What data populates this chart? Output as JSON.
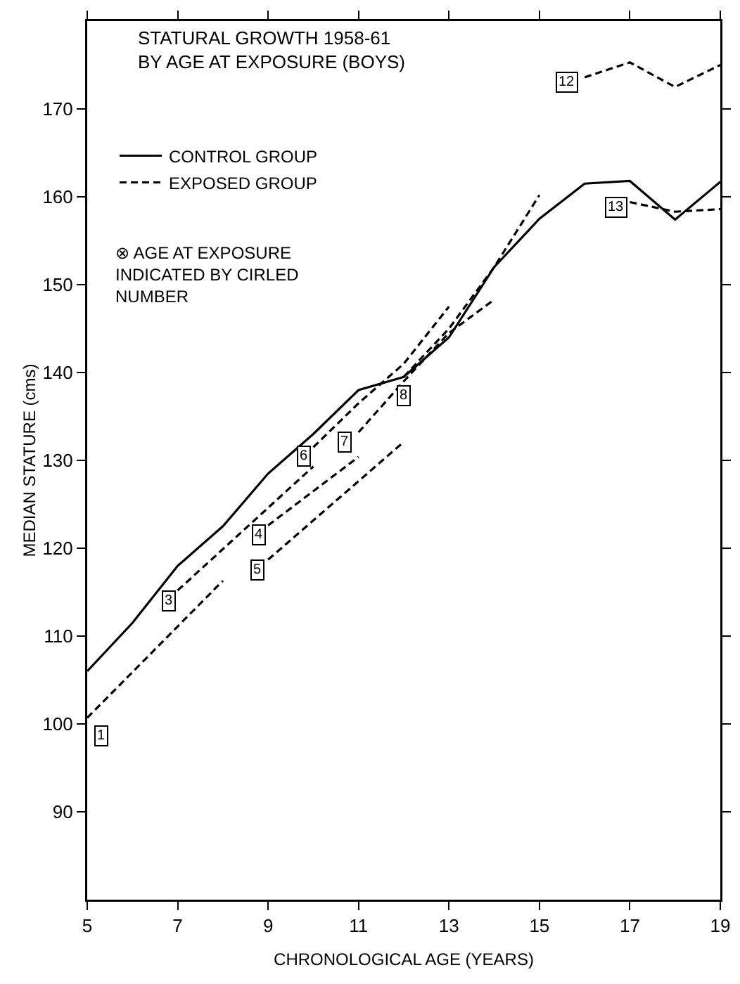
{
  "chart_data": {
    "type": "line",
    "title": "STATURAL GROWTH 1958-61\nBY AGE AT EXPOSURE (BOYS)",
    "xlabel": "CHRONOLOGICAL AGE (YEARS)",
    "ylabel": "MEDIAN STATURE (cms)",
    "xlim": [
      5,
      19
    ],
    "xticks": [
      5,
      7,
      9,
      11,
      13,
      15,
      17,
      19
    ],
    "ylim": [
      80,
      180
    ],
    "yticks": [
      90,
      100,
      110,
      120,
      130,
      140,
      150,
      160,
      170
    ],
    "grid": false,
    "legend": "top left",
    "marker": "none",
    "series": [
      {
        "name": "CONTROL GROUP",
        "color": "#000000",
        "line_style": "solid",
        "x": [
          5,
          6,
          7,
          8,
          9,
          10,
          11,
          12,
          13,
          14,
          15,
          16,
          17,
          18,
          19
        ],
        "values": [
          106,
          111.5,
          118,
          122.5,
          128.5,
          133,
          138,
          139.5,
          144,
          152,
          157.5,
          161.5,
          161.8,
          157.4,
          161.7
        ]
      },
      {
        "name": "EXPOSED GROUP",
        "color": "#000000",
        "line_style": "dashed",
        "x": [
          5,
          8
        ],
        "values": [
          100.7,
          116.3
        ]
      },
      {
        "color": "#000000",
        "line_style": "dashed",
        "x": [
          7,
          10
        ],
        "values": [
          115.2,
          129.3
        ]
      },
      {
        "color": "#000000",
        "line_style": "dashed",
        "x": [
          9,
          11
        ],
        "values": [
          122.6,
          130.4
        ]
      },
      {
        "color": "#000000",
        "line_style": "dashed",
        "x": [
          9,
          12
        ],
        "values": [
          118.7,
          132.1
        ]
      },
      {
        "color": "#000000",
        "line_style": "dashed",
        "x": [
          10,
          11,
          12,
          13
        ],
        "values": [
          131.5,
          136.5,
          141,
          147.5
        ]
      },
      {
        "color": "#000000",
        "line_style": "dashed",
        "x": [
          11,
          12,
          13,
          14
        ],
        "values": [
          133.2,
          139,
          144.5,
          148.3
        ]
      },
      {
        "color": "#000000",
        "line_style": "dashed",
        "x": [
          12,
          13,
          14,
          15
        ],
        "values": [
          139.5,
          145,
          152,
          160.2
        ]
      },
      {
        "color": "#000000",
        "line_style": "dashed",
        "x": [
          16,
          17,
          18,
          19
        ],
        "values": [
          173.6,
          175.3,
          172.5,
          175
        ]
      },
      {
        "color": "#000000",
        "line_style": "dashed",
        "x": [
          17,
          18,
          19
        ],
        "values": [
          159.4,
          158.3,
          158.6
        ]
      }
    ],
    "annotations": [
      "⊗ AGE AT EXPOSURE\nINDICATED BY CIRLED\nNUMBER",
      {
        "text": "1",
        "x": 5.3,
        "y": 98.7
      },
      {
        "text": "3",
        "x": 6.8,
        "y": 114
      },
      {
        "text": "4",
        "x": 8.8,
        "y": 121.5
      },
      {
        "text": "5",
        "x": 8.75,
        "y": 117.5
      },
      {
        "text": "6",
        "x": 9.8,
        "y": 130.5
      },
      {
        "text": "7",
        "x": 10.7,
        "y": 132.1
      },
      {
        "text": "8",
        "x": 12,
        "y": 137.4
      },
      {
        "text": "12",
        "x": 15.6,
        "y": 173.1
      },
      {
        "text": "13",
        "x": 16.7,
        "y": 158.8
      }
    ]
  }
}
